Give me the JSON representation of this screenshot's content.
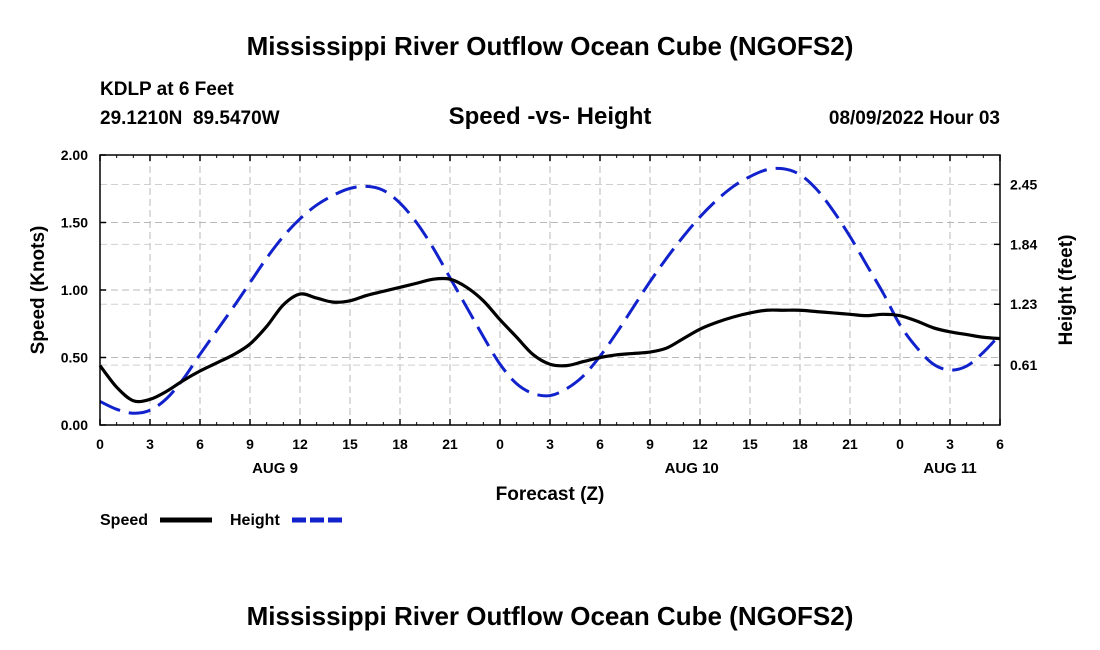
{
  "chart_data": {
    "type": "line",
    "title": "Mississippi River Outflow Ocean Cube (NGOFS2)",
    "station": "KDLP at 6 Feet",
    "location": "29.1210N  89.5470W",
    "subtitle": "Speed -vs- Height",
    "timestamp": "08/09/2022 Hour 03",
    "xlabel": "Forecast (Z)",
    "ylabel": "Speed (Knots)",
    "y2label": "Height (feet)",
    "xlim": [
      0,
      54
    ],
    "ylim": [
      0,
      2
    ],
    "y2lim": [
      0,
      2.75
    ],
    "x_ticks": [
      0,
      3,
      6,
      9,
      12,
      15,
      18,
      21,
      24,
      27,
      30,
      33,
      36,
      39,
      42,
      45,
      48,
      51,
      54
    ],
    "x_tick_labels": [
      "0",
      "3",
      "6",
      "9",
      "12",
      "15",
      "18",
      "21",
      "0",
      "3",
      "6",
      "9",
      "12",
      "15",
      "18",
      "21",
      "0",
      "3",
      "6"
    ],
    "y_ticks": [
      0,
      0.5,
      1.0,
      1.5,
      2.0
    ],
    "y_tick_labels": [
      "0.00",
      "0.50",
      "1.00",
      "1.50",
      "2.00"
    ],
    "y2_ticks": [
      0.61,
      1.23,
      1.84,
      2.45
    ],
    "y2_tick_labels": [
      "0.61",
      "1.23",
      "1.84",
      "2.45"
    ],
    "date_labels": [
      {
        "label": "AUG 9",
        "x": 10.5
      },
      {
        "label": "AUG 10",
        "x": 35.5
      },
      {
        "label": "AUG 11",
        "x": 51
      }
    ],
    "grid": true,
    "legend_position": "bottom-left",
    "series": [
      {
        "name": "Speed",
        "axis": "left",
        "color": "#000000",
        "style": "solid",
        "x": [
          0,
          1,
          2,
          3,
          4,
          5,
          6,
          7,
          8,
          9,
          10,
          11,
          12,
          13,
          14,
          15,
          16,
          17,
          18,
          19,
          20,
          21,
          22,
          23,
          24,
          25,
          26,
          27,
          28,
          29,
          30,
          31,
          32,
          33,
          34,
          35,
          36,
          37,
          38,
          39,
          40,
          41,
          42,
          43,
          44,
          45,
          46,
          47,
          48,
          49,
          50,
          51,
          52,
          53,
          54
        ],
        "values": [
          0.44,
          0.28,
          0.18,
          0.19,
          0.25,
          0.33,
          0.4,
          0.46,
          0.52,
          0.6,
          0.73,
          0.89,
          0.97,
          0.94,
          0.91,
          0.92,
          0.96,
          0.99,
          1.02,
          1.05,
          1.08,
          1.08,
          1.02,
          0.92,
          0.78,
          0.65,
          0.52,
          0.45,
          0.44,
          0.47,
          0.5,
          0.52,
          0.53,
          0.54,
          0.57,
          0.64,
          0.71,
          0.76,
          0.8,
          0.83,
          0.85,
          0.85,
          0.85,
          0.84,
          0.83,
          0.82,
          0.81,
          0.82,
          0.81,
          0.77,
          0.72,
          0.69,
          0.67,
          0.65,
          0.64
        ]
      },
      {
        "name": "Height",
        "axis": "right",
        "color": "#1122cc",
        "style": "dashed",
        "x": [
          0,
          1,
          2,
          3,
          4,
          5,
          6,
          7,
          8,
          9,
          10,
          11,
          12,
          13,
          14,
          15,
          16,
          17,
          18,
          19,
          20,
          21,
          22,
          23,
          24,
          25,
          26,
          27,
          28,
          29,
          30,
          31,
          32,
          33,
          34,
          35,
          36,
          37,
          38,
          39,
          40,
          41,
          42,
          43,
          44,
          45,
          46,
          47,
          48,
          49,
          50,
          51,
          52,
          53,
          54
        ],
        "values": [
          0.24,
          0.16,
          0.12,
          0.15,
          0.27,
          0.47,
          0.72,
          0.96,
          1.2,
          1.45,
          1.7,
          1.92,
          2.1,
          2.24,
          2.34,
          2.41,
          2.43,
          2.39,
          2.26,
          2.06,
          1.8,
          1.5,
          1.2,
          0.9,
          0.62,
          0.42,
          0.32,
          0.3,
          0.37,
          0.5,
          0.7,
          0.94,
          1.2,
          1.46,
          1.7,
          1.92,
          2.12,
          2.29,
          2.43,
          2.53,
          2.6,
          2.61,
          2.55,
          2.4,
          2.18,
          1.92,
          1.63,
          1.34,
          1.02,
          0.79,
          0.62,
          0.56,
          0.6,
          0.74,
          0.92
        ]
      }
    ]
  },
  "footer_title": "Mississippi River Outflow Ocean Cube (NGOFS2)",
  "legend": [
    {
      "label": "Speed",
      "color": "#000000",
      "style": "solid"
    },
    {
      "label": "Height",
      "color": "#1122cc",
      "style": "dashed"
    }
  ]
}
